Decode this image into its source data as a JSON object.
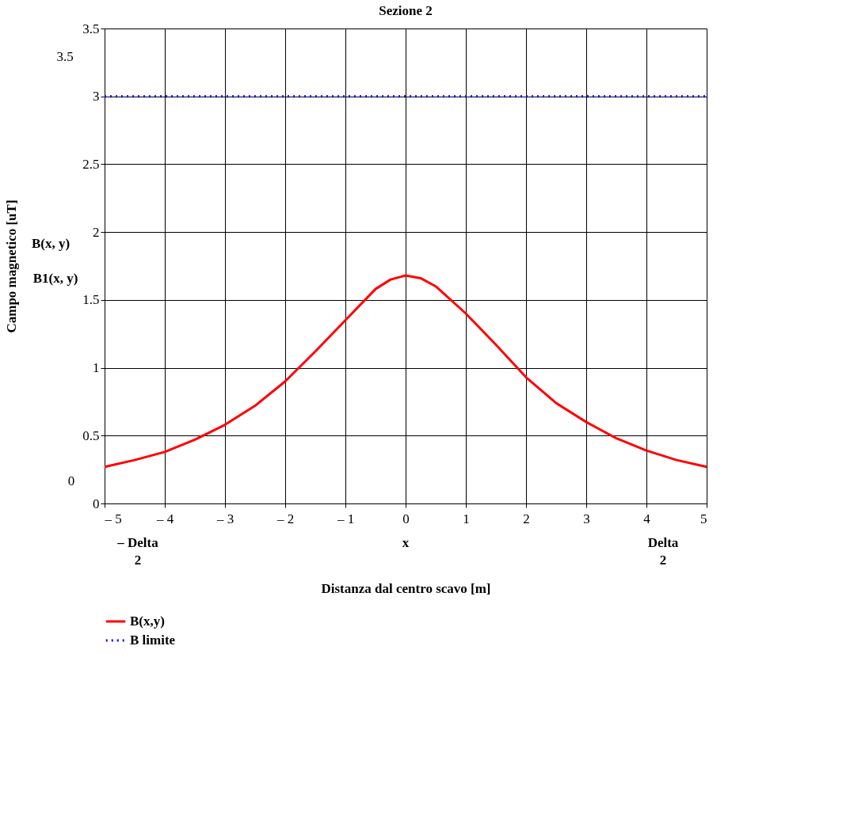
{
  "chart_data": {
    "type": "line",
    "title": "Sezione 2",
    "xlabel": "Distanza dal centro scavo  [m]",
    "ylabel": "Campo magnetico [uT]",
    "xlim": [
      -5,
      5
    ],
    "ylim": [
      0,
      3.5
    ],
    "xticks": [
      {
        "value": -5,
        "label": "– 5"
      },
      {
        "value": -4,
        "label": "– 4"
      },
      {
        "value": -3,
        "label": "– 3"
      },
      {
        "value": -2,
        "label": "– 2"
      },
      {
        "value": -1,
        "label": "– 1"
      },
      0,
      1,
      2,
      3,
      4,
      5
    ],
    "yticks": [
      0,
      0.5,
      1,
      1.5,
      2,
      2.5,
      3,
      3.5
    ],
    "grid": true,
    "legend": "bottom left",
    "marker": "none",
    "annotations": [
      "3.5",
      "0",
      "B(x, y)",
      "B1(x, y)",
      "– Delta",
      "2",
      "x",
      "Delta",
      "2"
    ],
    "series": [
      {
        "name": "B(x,y)",
        "color": "#ff0000",
        "line_style": "solid",
        "x": [
          -5,
          -4.5,
          -4,
          -3.5,
          -3,
          -2.5,
          -2,
          -1.5,
          -1,
          -0.5,
          -0.25,
          0,
          0.25,
          0.5,
          1,
          1.5,
          2,
          2.5,
          3,
          3.5,
          4,
          4.5,
          5
        ],
        "values": [
          0.27,
          0.32,
          0.38,
          0.47,
          0.58,
          0.72,
          0.9,
          1.12,
          1.35,
          1.58,
          1.65,
          1.68,
          1.66,
          1.6,
          1.4,
          1.17,
          0.93,
          0.74,
          0.6,
          0.48,
          0.39,
          0.32,
          0.27
        ]
      },
      {
        "name": "B limite",
        "color": "#0000ff",
        "line_style": "dotted",
        "x": [
          -5,
          5
        ],
        "values": [
          3,
          3
        ]
      }
    ]
  }
}
